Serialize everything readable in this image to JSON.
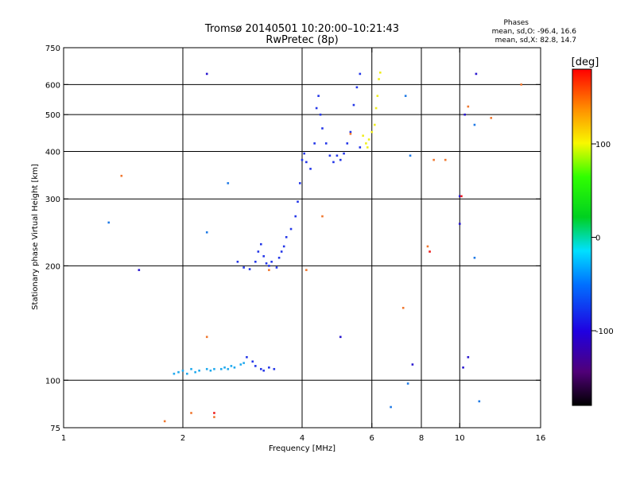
{
  "chart_data": {
    "type": "scatter",
    "title": "Tromsø 20140501 10:20:00–10:21:43",
    "subtitle": "RwPretec (8p)",
    "xlabel": "Frequency [MHz]",
    "ylabel": "Stationary phase Virtual Height [km]",
    "x_scale": "log",
    "y_scale": "log",
    "xlim": [
      1,
      16
    ],
    "ylim": [
      75,
      750
    ],
    "x_ticks": [
      1,
      2,
      4,
      6,
      8,
      10,
      16
    ],
    "x_tick_labels": [
      "1",
      "2",
      "4",
      "6",
      "8",
      "10",
      "16"
    ],
    "y_ticks": [
      75,
      100,
      200,
      300,
      400,
      500,
      600,
      750
    ],
    "y_tick_labels": [
      "75",
      "100",
      "200",
      "300",
      "400",
      "500",
      "600",
      "750"
    ],
    "grid_x": [
      2,
      4,
      6,
      8,
      10
    ],
    "grid_y": [
      100,
      200,
      300,
      400,
      500,
      600
    ],
    "grid": true,
    "phase_stats": {
      "heading": "Phases",
      "line_o": "mean, sd,O: -96.4, 16.6",
      "line_x": "mean, sd,X:  82.8, 14.7"
    },
    "colorbar": {
      "label": "[deg]",
      "range": [
        -180,
        180
      ],
      "tick_values": [
        100,
        0,
        -100
      ],
      "tick_labels": [
        "100",
        "0",
        "-100"
      ]
    },
    "series": [
      {
        "phase_deg": -70,
        "color": "#1fa9ee",
        "points": [
          [
            1.9,
            104
          ],
          [
            1.95,
            105
          ],
          [
            2.0,
            106
          ],
          [
            2.05,
            104
          ],
          [
            2.1,
            107
          ],
          [
            2.15,
            105
          ],
          [
            2.2,
            106
          ],
          [
            2.3,
            107
          ],
          [
            2.35,
            106
          ],
          [
            2.4,
            107
          ],
          [
            2.5,
            107
          ],
          [
            2.55,
            108
          ],
          [
            2.6,
            107
          ],
          [
            2.65,
            109
          ],
          [
            2.7,
            108
          ],
          [
            2.8,
            110
          ],
          [
            2.85,
            111
          ]
        ]
      },
      {
        "phase_deg": -105,
        "color": "#2336e8",
        "points": [
          [
            2.9,
            115
          ],
          [
            3.0,
            112
          ],
          [
            3.05,
            109
          ],
          [
            3.15,
            107
          ],
          [
            3.2,
            106
          ],
          [
            3.3,
            108
          ],
          [
            3.4,
            107
          ],
          [
            2.75,
            205
          ],
          [
            2.85,
            198
          ],
          [
            2.95,
            196
          ],
          [
            3.05,
            205
          ],
          [
            3.1,
            218
          ],
          [
            3.15,
            228
          ],
          [
            3.2,
            212
          ],
          [
            3.25,
            203
          ],
          [
            3.3,
            200
          ],
          [
            3.35,
            205
          ],
          [
            3.45,
            198
          ],
          [
            3.5,
            210
          ],
          [
            3.55,
            218
          ],
          [
            3.6,
            225
          ],
          [
            3.65,
            238
          ],
          [
            3.75,
            250
          ],
          [
            3.85,
            270
          ],
          [
            3.9,
            295
          ],
          [
            3.95,
            330
          ],
          [
            4.0,
            380
          ],
          [
            4.05,
            395
          ],
          [
            4.1,
            375
          ],
          [
            4.2,
            360
          ],
          [
            4.3,
            420
          ],
          [
            4.35,
            520
          ],
          [
            4.4,
            560
          ],
          [
            4.45,
            500
          ],
          [
            4.5,
            460
          ],
          [
            4.6,
            420
          ],
          [
            4.7,
            390
          ],
          [
            4.8,
            375
          ],
          [
            4.9,
            390
          ],
          [
            5.0,
            380
          ],
          [
            5.1,
            395
          ],
          [
            5.2,
            420
          ],
          [
            5.3,
            450
          ],
          [
            5.4,
            530
          ],
          [
            5.5,
            590
          ],
          [
            5.6,
            640
          ],
          [
            5.6,
            410
          ]
        ]
      },
      {
        "phase_deg": 95,
        "color": "#f0ee1e",
        "points": [
          [
            5.7,
            440
          ],
          [
            5.8,
            420
          ],
          [
            5.85,
            410
          ],
          [
            5.9,
            430
          ],
          [
            6.0,
            450
          ],
          [
            6.1,
            470
          ],
          [
            6.15,
            520
          ],
          [
            6.2,
            560
          ],
          [
            6.25,
            620
          ],
          [
            6.3,
            645
          ]
        ]
      },
      {
        "phase_deg": -115,
        "color": "#2a18d0",
        "points": [
          [
            2.3,
            640
          ],
          [
            1.55,
            195
          ],
          [
            5.0,
            130
          ],
          [
            7.6,
            110
          ],
          [
            10.2,
            108
          ],
          [
            10.5,
            115
          ],
          [
            10.0,
            305
          ],
          [
            10.0,
            258
          ],
          [
            11.0,
            640
          ],
          [
            10.3,
            500
          ]
        ]
      },
      {
        "phase_deg": -80,
        "color": "#1f7ae6",
        "points": [
          [
            1.3,
            260
          ],
          [
            2.6,
            330
          ],
          [
            2.3,
            245
          ],
          [
            7.3,
            560
          ],
          [
            7.5,
            390
          ],
          [
            10.9,
            210
          ],
          [
            10.9,
            470
          ],
          [
            11.2,
            88
          ],
          [
            7.4,
            98
          ],
          [
            6.7,
            85
          ]
        ]
      },
      {
        "phase_deg": 120,
        "color": "#f07830",
        "points": [
          [
            1.4,
            345
          ],
          [
            2.3,
            130
          ],
          [
            2.4,
            80
          ],
          [
            4.5,
            270
          ],
          [
            5.3,
            445
          ],
          [
            7.2,
            155
          ],
          [
            8.3,
            225
          ],
          [
            8.6,
            380
          ],
          [
            9.2,
            380
          ],
          [
            10.5,
            525
          ],
          [
            12.0,
            490
          ],
          [
            14.3,
            600
          ],
          [
            1.8,
            78
          ],
          [
            2.1,
            82
          ],
          [
            4.1,
            195
          ],
          [
            3.3,
            195
          ]
        ]
      },
      {
        "phase_deg": 170,
        "color": "#ee1a1a",
        "points": [
          [
            2.4,
            82
          ],
          [
            8.4,
            218
          ],
          [
            10.1,
            305
          ]
        ]
      }
    ]
  }
}
